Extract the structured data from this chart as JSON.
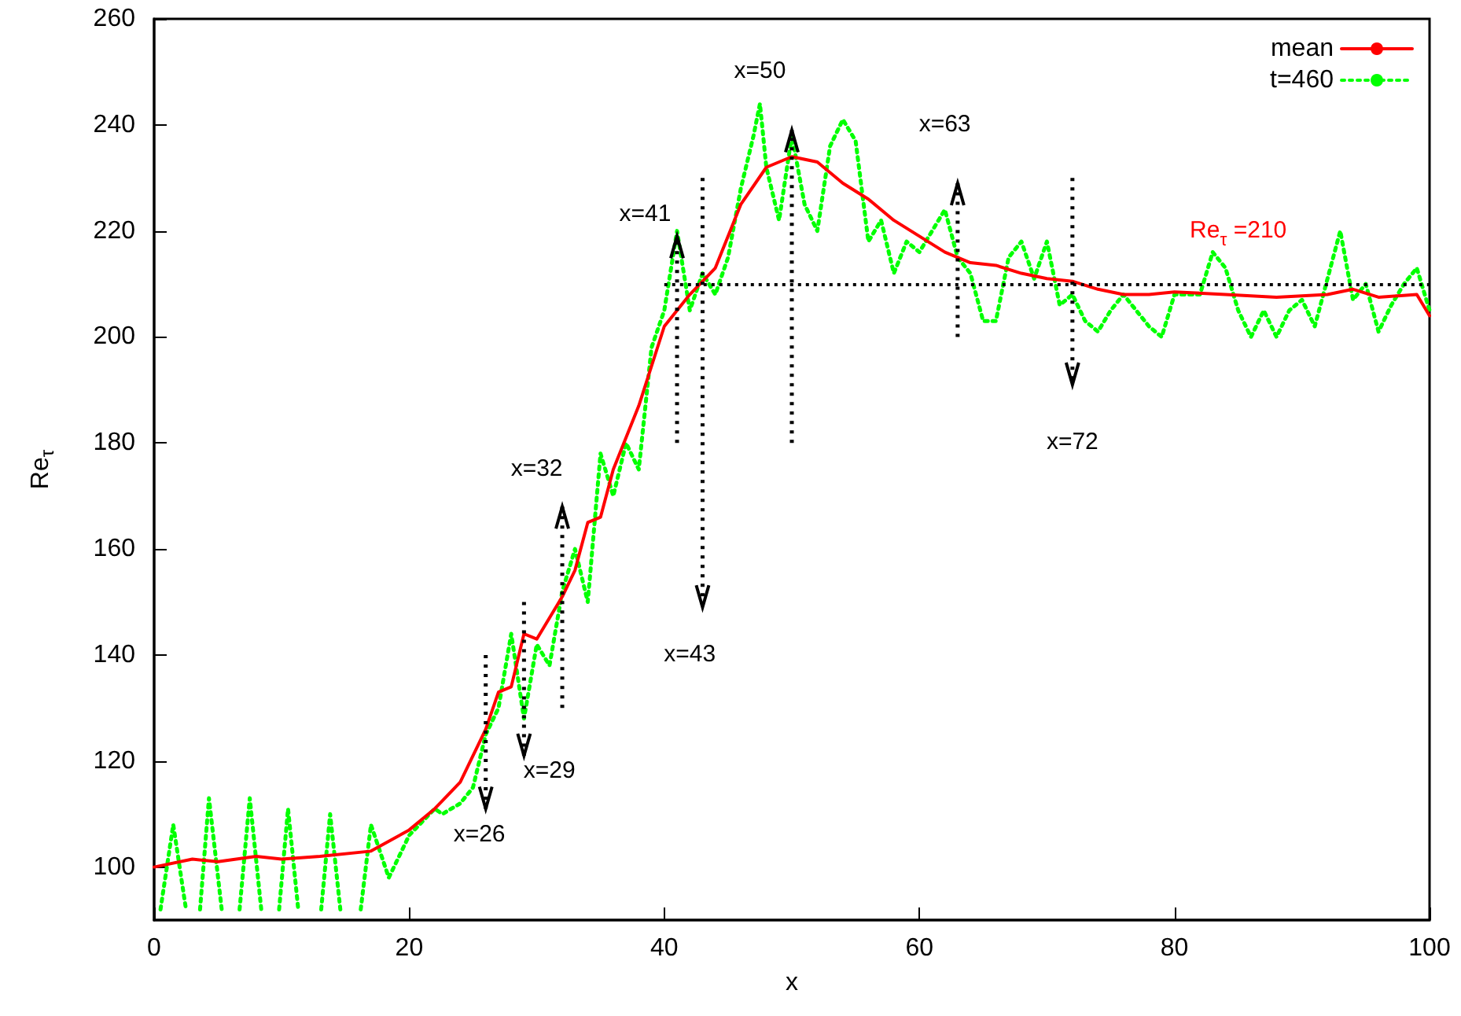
{
  "chart_data": {
    "type": "line",
    "xlabel": "x",
    "ylabel": "Re$_{τ}$",
    "xlim": [
      0,
      100
    ],
    "xticks": [
      0,
      20,
      40,
      60,
      80,
      100
    ],
    "ylim": [
      90,
      260
    ],
    "yticks": [
      100,
      120,
      140,
      160,
      180,
      200,
      220,
      240,
      260
    ],
    "grid": false,
    "legend": "top right",
    "marker": "none",
    "series": [
      {
        "name": "mean",
        "color": "#ff0000",
        "line_style": "solid",
        "x": [
          0,
          3,
          5,
          8,
          10,
          13,
          17,
          20,
          22,
          24,
          26,
          27,
          28,
          29,
          30,
          31,
          32,
          33,
          34,
          35,
          36,
          38,
          40,
          42,
          44,
          46,
          48,
          50,
          52,
          54,
          56,
          58,
          60,
          62,
          64,
          66,
          68,
          70,
          72,
          74,
          76,
          78,
          80,
          84,
          88,
          92,
          94,
          96,
          99,
          100
        ],
        "values": [
          100,
          101.5,
          101,
          102,
          101.5,
          102,
          103,
          107,
          111,
          116,
          126,
          133,
          134,
          144,
          143,
          147,
          151,
          156,
          165,
          166,
          175,
          187,
          202,
          208,
          213,
          225,
          232,
          234,
          233,
          229,
          226,
          222,
          219,
          216,
          214,
          213.5,
          212,
          211,
          210.5,
          209,
          208,
          208,
          208.5,
          208,
          207.5,
          208,
          209,
          207.5,
          208,
          204
        ]
      },
      {
        "name": "t=460",
        "color": "#00ff00",
        "line_style": "dotted",
        "x": [
          0.5,
          1.5,
          2.5,
          3,
          3.6,
          4.3,
          5.3,
          6,
          6.7,
          7.5,
          8.4,
          9,
          9.8,
          10.5,
          11.3,
          12,
          13.1,
          13.8,
          14.6,
          15.5,
          16.2,
          17,
          18.4,
          20,
          22,
          22.6,
          24,
          25,
          26,
          27,
          28,
          29,
          30,
          31,
          32,
          33,
          34,
          35,
          36,
          37,
          38,
          39,
          40,
          41,
          42,
          43,
          44,
          45,
          46,
          47,
          47.5,
          48,
          49,
          50,
          51,
          52,
          53,
          54,
          55,
          56,
          57,
          58,
          59,
          60,
          61,
          62,
          63,
          64,
          65,
          66,
          67,
          68,
          69,
          70,
          71,
          72,
          73,
          74,
          75,
          76,
          78,
          79,
          80,
          82,
          83,
          84,
          85,
          86,
          87,
          88,
          89,
          90,
          91,
          93,
          94,
          95,
          96,
          97,
          98,
          99,
          100
        ],
        "values": [
          92,
          108,
          92,
          null,
          92,
          113,
          92,
          null,
          92,
          113,
          92,
          null,
          92,
          111,
          92,
          null,
          92,
          110,
          92,
          null,
          92,
          108,
          98,
          106,
          111,
          110,
          112,
          115,
          125,
          130,
          144,
          128,
          142,
          138,
          152,
          160,
          150,
          178,
          170,
          180,
          175,
          198,
          205,
          220,
          205,
          212,
          208,
          215,
          228,
          238,
          244,
          232,
          222,
          238,
          225,
          220,
          236,
          241,
          237,
          218,
          222,
          212,
          218,
          216,
          220,
          224,
          215,
          212,
          203,
          203,
          215,
          218,
          211,
          218,
          206,
          208,
          203,
          201,
          205,
          208,
          202,
          200,
          208,
          208,
          216,
          213,
          205,
          200,
          205,
          200,
          205,
          207,
          202,
          220,
          207,
          210,
          201,
          206,
          210,
          213,
          205
        ]
      }
    ],
    "ref_lines": [
      {
        "axis": "y",
        "value": 210,
        "label": "Re$_{τ}$ =210",
        "color": "#000000",
        "line_style": "dotted"
      }
    ],
    "annotations": [
      "x=26",
      "x=29",
      "x=32",
      "x=41",
      "x=43",
      "x=50",
      "x=63",
      "x=72"
    ]
  }
}
